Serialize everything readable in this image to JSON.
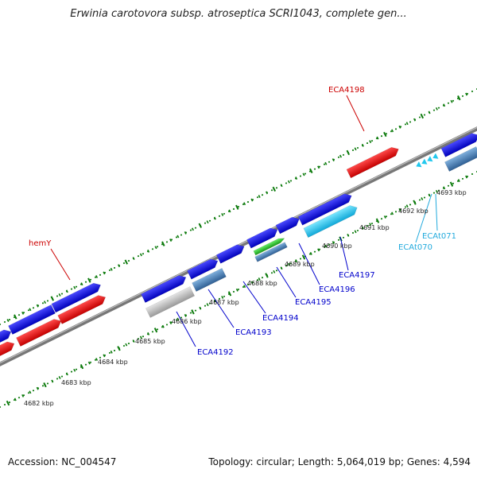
{
  "title": "Erwinia carotovora subsp. atroseptica SCRI1043, complete gen...",
  "footer": {
    "accession": "Accession: NC_004547",
    "summary": "Topology: circular; Length: 5,064,019 bp; Genes: 4,594"
  },
  "colors": {
    "gene_blue": "#0a0ae6",
    "gene_red": "#ee1111",
    "gene_grey": "#bbbbbb",
    "gene_steel": "#4b7fb3",
    "gene_green": "#33cc33",
    "gene_cyan": "#22c8ee",
    "label_blue": "#0000cc",
    "label_red": "#cc0000",
    "label_cyan": "#22aadd",
    "tick_green": "#0b7a0b",
    "backbone": "#777777"
  },
  "ruler": {
    "ticks": [
      "4682 kbp",
      "4683 kbp",
      "4684 kbp",
      "4685 kbp",
      "4686 kbp",
      "4687 kbp",
      "4688 kbp",
      "4689 kbp",
      "4690 kbp",
      "4691 kbp",
      "4692 kbp",
      "4693 kbp"
    ]
  },
  "labels": [
    {
      "text": "ECA4198",
      "color": "label_red"
    },
    {
      "text": "hemY",
      "color": "label_red"
    },
    {
      "text": "ECA4192",
      "color": "label_blue"
    },
    {
      "text": "ECA4193",
      "color": "label_blue"
    },
    {
      "text": "ECA4194",
      "color": "label_blue"
    },
    {
      "text": "ECA4195",
      "color": "label_blue"
    },
    {
      "text": "ECA4196",
      "color": "label_blue"
    },
    {
      "text": "ECA4197",
      "color": "label_blue"
    },
    {
      "text": "ECAt070",
      "color": "label_cyan"
    },
    {
      "text": "ECAt071",
      "color": "label_cyan"
    }
  ]
}
